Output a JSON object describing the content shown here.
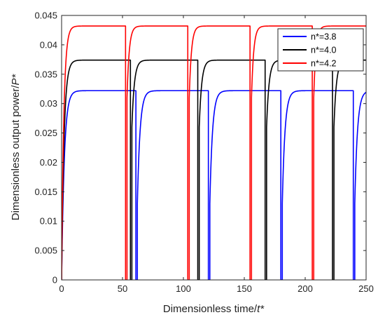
{
  "chart_data": {
    "type": "line",
    "xlabel_main": "Dimensionless time/",
    "xlabel_var": "t*",
    "ylabel_main": "Dimensionless output power/",
    "ylabel_var": "P*",
    "xlim": [
      0,
      250
    ],
    "ylim": [
      0,
      0.045
    ],
    "x_ticks": [
      "0",
      "50",
      "100",
      "150",
      "200",
      "250"
    ],
    "y_ticks": [
      "0",
      "0.005",
      "0.01",
      "0.015",
      "0.02",
      "0.025",
      "0.03",
      "0.035",
      "0.04",
      "0.045"
    ],
    "grid": false,
    "legend_position": "top-right",
    "series": [
      {
        "name": "n*=3.8",
        "color": "#0000ff",
        "plateau": 0.0322,
        "cycle_period": 59.5,
        "drop_times": [
          61,
          120.5,
          180,
          239.5
        ],
        "rise_time_constant": 2.2,
        "rise_start_value": 0.013
      },
      {
        "name": "n*=4.0",
        "color": "#000000",
        "plateau": 0.0374,
        "cycle_period": 55.3,
        "drop_times": [
          56.5,
          111.8,
          167.1,
          222.4
        ],
        "rise_time_constant": 2.0,
        "rise_start_value": 0.026
      },
      {
        "name": "n*=4.2",
        "color": "#ff0000",
        "plateau": 0.0432,
        "cycle_period": 51.1,
        "drop_times": [
          52.5,
          103.6,
          154.7,
          205.8
        ],
        "rise_time_constant": 1.8,
        "rise_start_value": 0.031
      }
    ]
  }
}
